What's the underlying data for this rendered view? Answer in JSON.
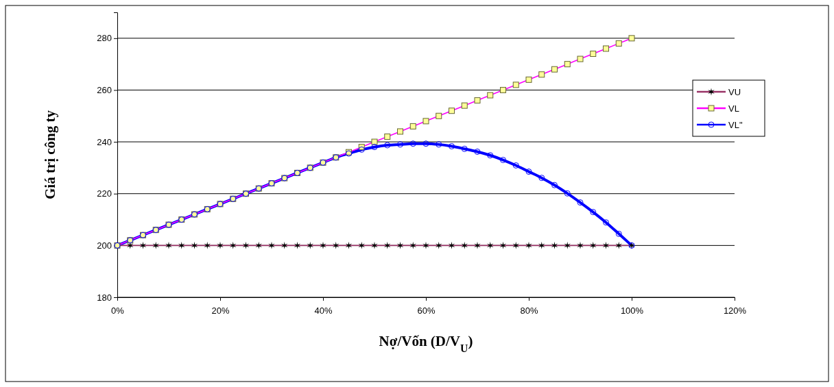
{
  "chart_data": {
    "type": "line",
    "xlabel": "Nợ/Vốn (D/V$_{U}$)",
    "ylabel": "Giá trị công ty",
    "x": [
      0,
      2.5,
      5,
      7.5,
      10,
      12.5,
      15,
      17.5,
      20,
      22.5,
      25,
      27.5,
      30,
      32.5,
      35,
      37.5,
      40,
      42.5,
      45,
      47.5,
      50,
      52.5,
      55,
      57.5,
      60,
      62.5,
      65,
      67.5,
      70,
      72.5,
      75,
      77.5,
      80,
      82.5,
      85,
      87.5,
      90,
      92.5,
      95,
      97.5,
      100
    ],
    "series": [
      {
        "name": "VU",
        "color": "#993366",
        "marker": "cross",
        "values": [
          200,
          200,
          200,
          200,
          200,
          200,
          200,
          200,
          200,
          200,
          200,
          200,
          200,
          200,
          200,
          200,
          200,
          200,
          200,
          200,
          200,
          200,
          200,
          200,
          200,
          200,
          200,
          200,
          200,
          200,
          200,
          200,
          200,
          200,
          200,
          200,
          200,
          200,
          200,
          200,
          200
        ]
      },
      {
        "name": "VL",
        "color": "#ff00ff",
        "marker": "square",
        "values": [
          200,
          202,
          204,
          206,
          208,
          210,
          212,
          214,
          216,
          218,
          220,
          222,
          224,
          226,
          228,
          230,
          232,
          234,
          236,
          238,
          240,
          242,
          244,
          246,
          248,
          250,
          252,
          254,
          256,
          258,
          260,
          262,
          264,
          266,
          268,
          270,
          272,
          274,
          276,
          278,
          280
        ]
      },
      {
        "name": "VL\"",
        "color": "#0000ff",
        "marker": "circle",
        "values": [
          200,
          202,
          204,
          206,
          208,
          210,
          212,
          214,
          216,
          218,
          220,
          222,
          224,
          226,
          228,
          230,
          232,
          234,
          235.5,
          237,
          238,
          238.7,
          239,
          239.3,
          239.3,
          239,
          238.3,
          237.3,
          236.2,
          234.8,
          233,
          230.9,
          228.5,
          226.1,
          223.3,
          220.1,
          216.6,
          212.9,
          208.9,
          204.5,
          200
        ]
      }
    ],
    "xlim": [
      0,
      120
    ],
    "xticks": [
      {
        "value": 0,
        "label": "0%"
      },
      {
        "value": 20,
        "label": "20%"
      },
      {
        "value": 40,
        "label": "40%"
      },
      {
        "value": 60,
        "label": "60%"
      },
      {
        "value": 80,
        "label": "80%"
      },
      {
        "value": 100,
        "label": "100%"
      },
      {
        "value": 120,
        "label": "120%"
      }
    ],
    "ylim": [
      180,
      290
    ],
    "yticks": [
      180,
      200,
      220,
      240,
      260,
      280
    ],
    "grid": "y",
    "legend": "right"
  }
}
